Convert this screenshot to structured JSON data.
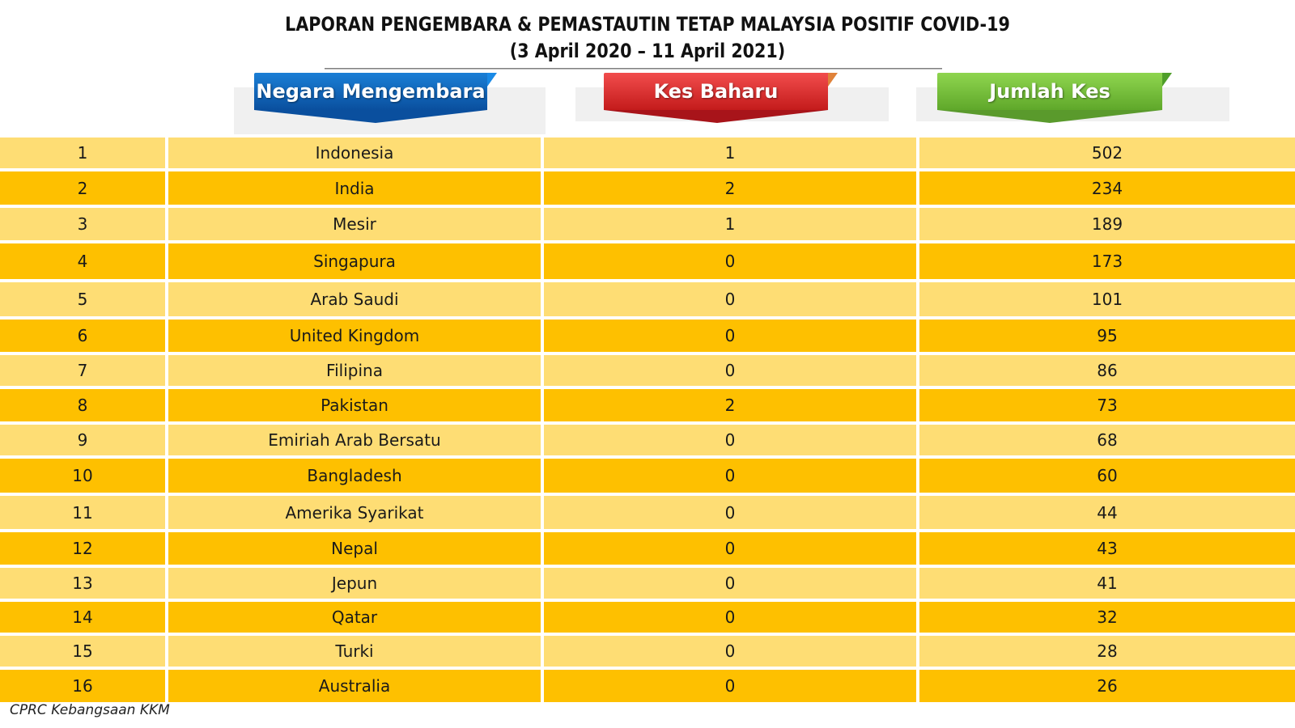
{
  "title": {
    "line1": "LAPORAN PENGEMBARA & PEMASTAUTIN TETAP MALAYSIA POSITIF COVID-19",
    "line2": "(3 April 2020 – 11 April 2021)"
  },
  "headers": {
    "country": "Negara Mengembara",
    "new_cases": "Kes Baharu",
    "total_cases": "Jumlah Kes"
  },
  "colors": {
    "header_country": "#0b61b8",
    "header_new": "#e52b2b",
    "header_total": "#7cc63b",
    "row_light": "#fedd74",
    "row_dark": "#fec000"
  },
  "rows": [
    {
      "no": "1",
      "country": "Indonesia",
      "new": "1",
      "total": "502"
    },
    {
      "no": "2",
      "country": "India",
      "new": "2",
      "total": "234"
    },
    {
      "no": "3",
      "country": "Mesir",
      "new": "1",
      "total": "189"
    },
    {
      "no": "4",
      "country": "Singapura",
      "new": "0",
      "total": "173"
    },
    {
      "no": "5",
      "country": "Arab Saudi",
      "new": "0",
      "total": "101"
    },
    {
      "no": "6",
      "country": "United Kingdom",
      "new": "0",
      "total": "95"
    },
    {
      "no": "7",
      "country": "Filipina",
      "new": "0",
      "total": "86"
    },
    {
      "no": "8",
      "country": "Pakistan",
      "new": "2",
      "total": "73"
    },
    {
      "no": "9",
      "country": "Emiriah Arab Bersatu",
      "new": "0",
      "total": "68"
    },
    {
      "no": "10",
      "country": "Bangladesh",
      "new": "0",
      "total": "60"
    },
    {
      "no": "11",
      "country": "Amerika Syarikat",
      "new": "0",
      "total": "44"
    },
    {
      "no": "12",
      "country": "Nepal",
      "new": "0",
      "total": "43"
    },
    {
      "no": "13",
      "country": "Jepun",
      "new": "0",
      "total": "41"
    },
    {
      "no": "14",
      "country": "Qatar",
      "new": "0",
      "total": "32"
    },
    {
      "no": "15",
      "country": "Turki",
      "new": "0",
      "total": "28"
    },
    {
      "no": "16",
      "country": "Australia",
      "new": "0",
      "total": "26"
    }
  ],
  "footer": "CPRC Kebangsaan KKM"
}
